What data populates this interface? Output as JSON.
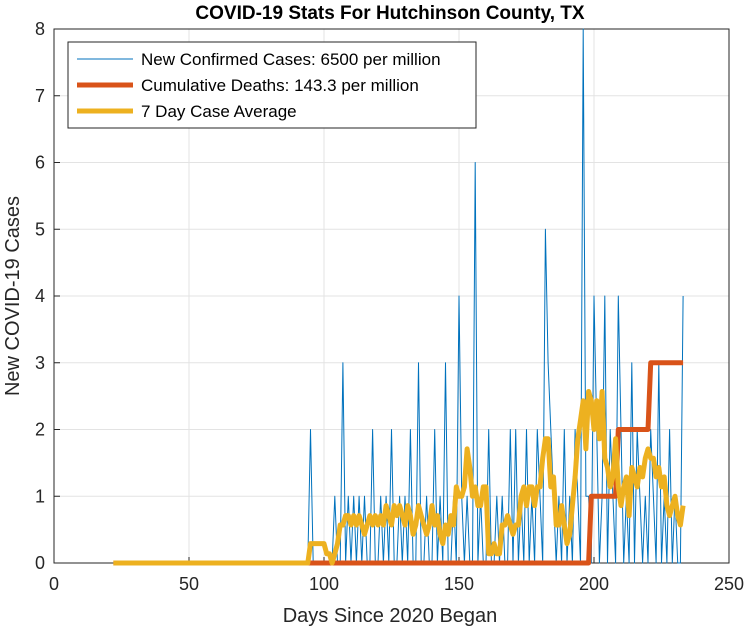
{
  "chart_data": {
    "type": "line",
    "title": "COVID-19 Stats For Hutchinson County, TX",
    "xlabel": "Days Since 2020 Began",
    "ylabel": "New COVID-19 Cases",
    "xlim": [
      0,
      250
    ],
    "ylim": [
      0,
      8
    ],
    "xticks": [
      0,
      50,
      100,
      150,
      200,
      250
    ],
    "yticks": [
      0,
      1,
      2,
      3,
      4,
      5,
      6,
      7,
      8
    ],
    "grid": true,
    "legend_position": "top-left",
    "series": [
      {
        "name": "New Confirmed Cases: 6500 per million",
        "color": "#0072BD",
        "line_width": "thin",
        "x": [
          22,
          30,
          40,
          50,
          60,
          70,
          80,
          90,
          94,
          95,
          96,
          97,
          98,
          99,
          100,
          101,
          102,
          103,
          104,
          105,
          106,
          107,
          108,
          109,
          110,
          111,
          112,
          113,
          114,
          115,
          116,
          117,
          118,
          119,
          120,
          121,
          122,
          123,
          124,
          125,
          126,
          127,
          128,
          129,
          130,
          131,
          132,
          133,
          134,
          135,
          136,
          137,
          138,
          139,
          140,
          141,
          142,
          143,
          144,
          145,
          146,
          147,
          148,
          149,
          150,
          151,
          152,
          153,
          154,
          155,
          156,
          157,
          158,
          159,
          160,
          161,
          162,
          163,
          164,
          165,
          166,
          167,
          168,
          169,
          170,
          171,
          172,
          173,
          174,
          175,
          176,
          177,
          178,
          179,
          180,
          181,
          182,
          183,
          184,
          185,
          186,
          187,
          188,
          189,
          190,
          191,
          192,
          193,
          194,
          195,
          196,
          197,
          198,
          199,
          200,
          201,
          202,
          203,
          204,
          205,
          206,
          207,
          208,
          209,
          210,
          211,
          212,
          213,
          214,
          215,
          216,
          217,
          218,
          219,
          220,
          221,
          222,
          223,
          224,
          225,
          226,
          227,
          228,
          229,
          230,
          231,
          232,
          233
        ],
        "y": [
          0,
          0,
          0,
          0,
          0,
          0,
          0,
          0,
          0,
          2,
          0,
          0,
          0,
          0,
          0,
          0,
          0,
          0,
          1,
          0,
          0,
          3,
          0,
          1,
          0,
          1,
          0,
          1,
          0,
          1,
          0,
          0,
          2,
          0,
          0,
          1,
          0,
          1,
          0,
          2,
          0,
          0,
          1,
          0,
          1,
          0,
          2,
          0,
          0,
          3,
          0,
          0,
          1,
          0,
          0,
          2,
          0,
          1,
          0,
          3,
          0,
          0,
          1,
          0,
          4,
          1,
          0,
          1,
          0,
          0,
          6,
          0,
          1,
          0,
          0,
          2,
          0,
          0,
          1,
          0,
          1,
          0,
          0,
          2,
          0,
          2,
          0,
          1,
          0,
          2,
          0,
          1,
          0,
          2,
          1,
          0,
          5,
          3,
          2,
          1,
          0,
          1,
          0,
          2,
          0,
          1,
          0,
          2,
          1,
          0,
          8,
          1,
          1,
          0,
          4,
          2,
          0,
          1,
          4,
          0,
          2,
          1,
          0,
          4,
          2,
          0,
          1,
          0,
          3,
          0,
          2,
          1,
          0,
          1,
          0,
          2,
          1,
          0,
          3,
          0,
          1,
          0,
          2,
          0,
          1,
          0,
          0,
          4
        ]
      },
      {
        "name": "Cumulative Deaths: 143.3 per million",
        "color": "#D95319",
        "line_width": "thick",
        "x": [
          22,
          197,
          198,
          199,
          207,
          208,
          209,
          219,
          220,
          221,
          233
        ],
        "y": [
          0,
          0,
          0,
          1,
          1,
          1,
          2,
          2,
          2,
          3,
          3
        ]
      },
      {
        "name": "7 Day Case Average",
        "color": "#EDB120",
        "line_width": "thick",
        "x": [
          22,
          50,
          80,
          94,
          95,
          100,
          101,
          102,
          103,
          104,
          105,
          106,
          107,
          108,
          109,
          110,
          111,
          112,
          113,
          114,
          115,
          116,
          117,
          118,
          119,
          120,
          121,
          122,
          123,
          124,
          125,
          126,
          127,
          128,
          129,
          130,
          131,
          132,
          133,
          134,
          135,
          136,
          137,
          138,
          139,
          140,
          141,
          142,
          143,
          144,
          145,
          146,
          147,
          148,
          149,
          150,
          151,
          152,
          153,
          154,
          155,
          156,
          157,
          158,
          159,
          160,
          161,
          162,
          163,
          164,
          165,
          166,
          167,
          168,
          169,
          170,
          171,
          172,
          173,
          174,
          175,
          176,
          177,
          178,
          179,
          180,
          181,
          182,
          183,
          184,
          185,
          186,
          187,
          188,
          189,
          190,
          191,
          192,
          193,
          194,
          195,
          196,
          197,
          198,
          199,
          200,
          201,
          202,
          203,
          204,
          205,
          206,
          207,
          208,
          209,
          210,
          211,
          212,
          213,
          214,
          215,
          216,
          217,
          218,
          219,
          220,
          221,
          222,
          223,
          224,
          225,
          226,
          227,
          228,
          229,
          230,
          231,
          232,
          233
        ],
        "y": [
          0,
          0,
          0,
          0,
          0.29,
          0.29,
          0.14,
          0.14,
          0,
          0.14,
          0.29,
          0.57,
          0.57,
          0.71,
          0.71,
          0.57,
          0.71,
          0.57,
          0.71,
          0.57,
          0.43,
          0.57,
          0.71,
          0.57,
          0.71,
          0.57,
          0.71,
          0.57,
          0.86,
          0.71,
          0.57,
          0.86,
          0.71,
          0.86,
          0.71,
          0.57,
          0.86,
          0.71,
          0.43,
          0.57,
          0.86,
          0.71,
          0.57,
          0.43,
          0.57,
          0.86,
          0.57,
          0.71,
          0.43,
          0.29,
          0.57,
          0.43,
          0.71,
          0.57,
          1.14,
          1.0,
          1.0,
          1.14,
          1.71,
          1.43,
          1.0,
          1.14,
          0.86,
          0.86,
          1.14,
          1.14,
          0.14,
          0.14,
          0.29,
          0.14,
          0.14,
          0.57,
          0.57,
          0.71,
          0.57,
          0.43,
          0.57,
          0.57,
          1.0,
          1.14,
          0.86,
          1.14,
          1.14,
          0.86,
          1.14,
          1.14,
          1.57,
          1.86,
          1.86,
          1.14,
          1.29,
          0.57,
          0.57,
          0.86,
          0.57,
          0.29,
          0.43,
          0.86,
          1.29,
          1.86,
          2.14,
          2.43,
          1.71,
          2.57,
          2.43,
          2.0,
          2.43,
          1.86,
          2.57,
          1.57,
          1.43,
          1.14,
          1.29,
          1.86,
          1.14,
          0.86,
          1.14,
          1.29,
          0.71,
          1.43,
          1.29,
          1.14,
          1.43,
          1.29,
          1.57,
          1.71,
          1.57,
          1.57,
          1.29,
          1.43,
          1.14,
          1.29,
          0.86,
          0.71,
          0.86,
          1.0,
          0.71,
          0.57,
          0.86
        ]
      }
    ]
  }
}
